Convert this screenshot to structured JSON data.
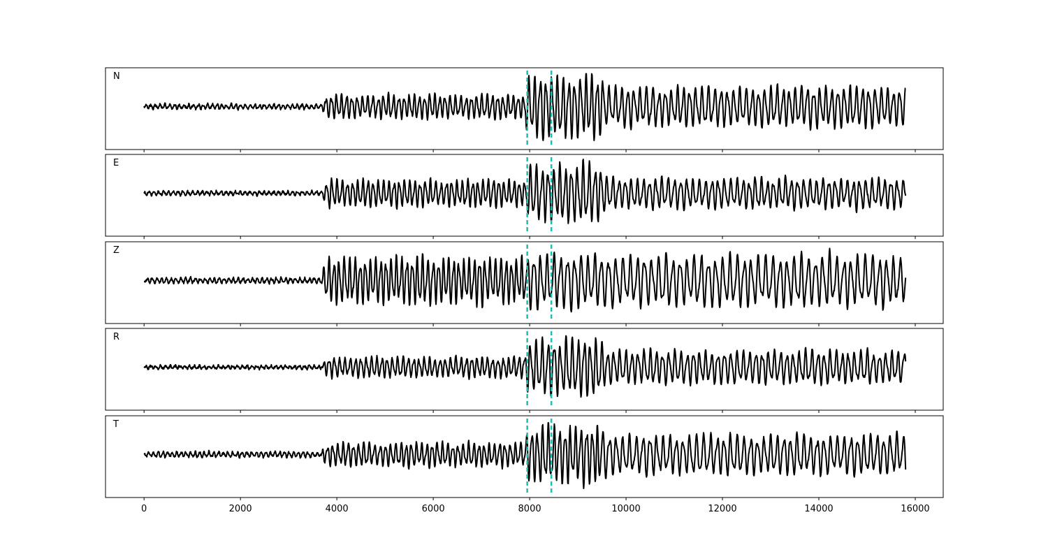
{
  "chart_data": {
    "type": "line",
    "title": "",
    "xlabel": "",
    "ylabel": "",
    "xlim": [
      -800,
      16580
    ],
    "xticks": [
      0,
      2000,
      4000,
      6000,
      8000,
      10000,
      12000,
      14000,
      16000
    ],
    "xtick_labels": [
      "0",
      "2000",
      "4000",
      "6000",
      "8000",
      "10000",
      "12000",
      "14000",
      "16000"
    ],
    "n_samples": 15800,
    "line_color": "#000000",
    "markers": {
      "values": [
        7950,
        8450
      ],
      "color": "#1ABFB6",
      "style": "dashed"
    },
    "series": [
      {
        "name": "N",
        "segments": [
          {
            "start": 0,
            "end": 3700,
            "amp": 0.07,
            "period": 100
          },
          {
            "start": 3700,
            "end": 7900,
            "amp": 0.35,
            "period": 110
          },
          {
            "start": 7900,
            "end": 9500,
            "amp": 0.95,
            "period": 120
          },
          {
            "start": 9500,
            "end": 15800,
            "amp": 0.6,
            "period": 130
          }
        ]
      },
      {
        "name": "E",
        "segments": [
          {
            "start": 0,
            "end": 3700,
            "amp": 0.06,
            "period": 100
          },
          {
            "start": 3700,
            "end": 7900,
            "amp": 0.4,
            "period": 110
          },
          {
            "start": 7900,
            "end": 9500,
            "amp": 0.85,
            "period": 125
          },
          {
            "start": 9500,
            "end": 15800,
            "amp": 0.45,
            "period": 130
          }
        ]
      },
      {
        "name": "Z",
        "segments": [
          {
            "start": 0,
            "end": 3700,
            "amp": 0.08,
            "period": 100
          },
          {
            "start": 3700,
            "end": 7900,
            "amp": 0.7,
            "period": 110
          },
          {
            "start": 7900,
            "end": 9500,
            "amp": 0.8,
            "period": 140
          },
          {
            "start": 9500,
            "end": 15800,
            "amp": 0.75,
            "period": 150
          }
        ]
      },
      {
        "name": "R",
        "segments": [
          {
            "start": 0,
            "end": 3700,
            "amp": 0.05,
            "period": 100
          },
          {
            "start": 3700,
            "end": 7900,
            "amp": 0.3,
            "period": 110
          },
          {
            "start": 7900,
            "end": 9500,
            "amp": 0.85,
            "period": 125
          },
          {
            "start": 9500,
            "end": 15800,
            "amp": 0.5,
            "period": 130
          }
        ]
      },
      {
        "name": "T",
        "segments": [
          {
            "start": 0,
            "end": 3700,
            "amp": 0.08,
            "period": 100
          },
          {
            "start": 3700,
            "end": 7900,
            "amp": 0.35,
            "period": 110
          },
          {
            "start": 7900,
            "end": 9500,
            "amp": 0.85,
            "period": 115
          },
          {
            "start": 9500,
            "end": 15800,
            "amp": 0.6,
            "period": 140
          }
        ]
      }
    ]
  }
}
